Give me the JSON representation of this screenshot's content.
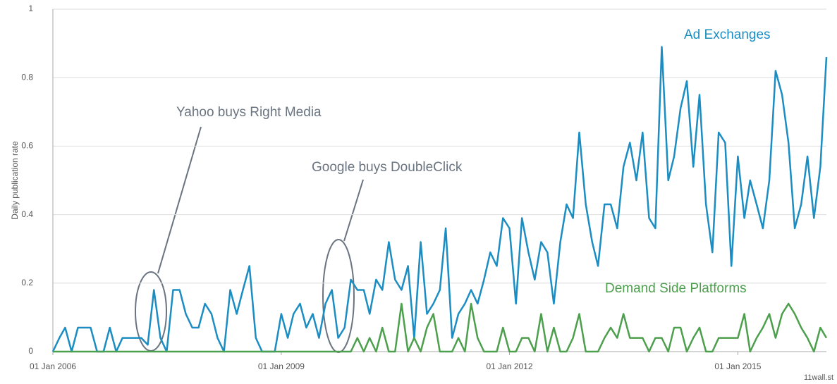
{
  "chart_data": {
    "type": "line",
    "y_label": "Daily publication rate",
    "x": [
      "2006-01-01",
      "2006-02-01",
      "2006-03-01",
      "2006-04-01",
      "2006-05-01",
      "2006-06-01",
      "2006-07-01",
      "2006-08-01",
      "2006-09-01",
      "2006-10-01",
      "2006-11-01",
      "2006-12-01",
      "2007-01-01",
      "2007-02-01",
      "2007-03-01",
      "2007-04-01",
      "2007-05-01",
      "2007-06-01",
      "2007-07-01",
      "2007-08-01",
      "2007-09-01",
      "2007-10-01",
      "2007-11-01",
      "2007-12-01",
      "2008-01-01",
      "2008-02-01",
      "2008-03-01",
      "2008-04-01",
      "2008-05-01",
      "2008-06-01",
      "2008-07-01",
      "2008-08-01",
      "2008-09-01",
      "2008-10-01",
      "2008-11-01",
      "2008-12-01",
      "2009-01-01",
      "2009-02-01",
      "2009-03-01",
      "2009-04-01",
      "2009-05-01",
      "2009-06-01",
      "2009-07-01",
      "2009-08-01",
      "2009-09-01",
      "2009-10-01",
      "2009-11-01",
      "2009-12-01",
      "2010-01-01",
      "2010-02-01",
      "2010-03-01",
      "2010-04-01",
      "2010-05-01",
      "2010-06-01",
      "2010-07-01",
      "2010-08-01",
      "2010-09-01",
      "2010-10-01",
      "2010-11-01",
      "2010-12-01",
      "2011-01-01",
      "2011-02-01",
      "2011-03-01",
      "2011-04-01",
      "2011-05-01",
      "2011-06-01",
      "2011-07-01",
      "2011-08-01",
      "2011-09-01",
      "2011-10-01",
      "2011-11-01",
      "2011-12-01",
      "2012-01-01",
      "2012-02-01",
      "2012-03-01",
      "2012-04-01",
      "2012-05-01",
      "2012-06-01",
      "2012-07-01",
      "2012-08-01",
      "2012-09-01",
      "2012-10-01",
      "2012-11-01",
      "2012-12-01",
      "2013-01-01",
      "2013-02-01",
      "2013-03-01",
      "2013-04-01",
      "2013-05-01",
      "2013-06-01",
      "2013-07-01",
      "2013-08-01",
      "2013-09-01",
      "2013-10-01",
      "2013-11-01",
      "2013-12-01",
      "2014-01-01",
      "2014-02-01",
      "2014-03-01",
      "2014-04-01",
      "2014-05-01",
      "2014-06-01",
      "2014-07-01",
      "2014-08-01",
      "2014-09-01",
      "2014-10-01",
      "2014-11-01",
      "2014-12-01",
      "2015-01-01",
      "2015-02-01",
      "2015-03-01",
      "2015-04-01",
      "2015-05-01",
      "2015-06-01",
      "2015-07-01",
      "2015-08-01",
      "2015-09-01",
      "2015-10-01",
      "2015-11-01",
      "2015-12-01",
      "2016-01-01",
      "2016-02-01",
      "2016-03-01"
    ],
    "series": [
      {
        "name": "Ad Exchanges",
        "color": "#1b8dc2",
        "values": [
          0,
          0.04,
          0.07,
          0,
          0.07,
          0.07,
          0.07,
          0,
          0,
          0.07,
          0,
          0.04,
          0.04,
          0.04,
          0.04,
          0.02,
          0.18,
          0.04,
          0,
          0.18,
          0.18,
          0.11,
          0.07,
          0.07,
          0.14,
          0.11,
          0.04,
          0,
          0.18,
          0.11,
          0.18,
          0.25,
          0.04,
          0,
          0,
          0,
          0.11,
          0.04,
          0.11,
          0.14,
          0.07,
          0.11,
          0.04,
          0.14,
          0.18,
          0.04,
          0.07,
          0.21,
          0.18,
          0.18,
          0.11,
          0.21,
          0.18,
          0.32,
          0.21,
          0.18,
          0.25,
          0.04,
          0.32,
          0.11,
          0.14,
          0.18,
          0.36,
          0.04,
          0.11,
          0.14,
          0.18,
          0.14,
          0.21,
          0.29,
          0.25,
          0.39,
          0.36,
          0.14,
          0.39,
          0.29,
          0.21,
          0.32,
          0.29,
          0.14,
          0.32,
          0.43,
          0.39,
          0.64,
          0.43,
          0.32,
          0.25,
          0.43,
          0.43,
          0.36,
          0.54,
          0.61,
          0.5,
          0.64,
          0.39,
          0.36,
          0.89,
          0.5,
          0.57,
          0.71,
          0.79,
          0.54,
          0.75,
          0.43,
          0.29,
          0.64,
          0.61,
          0.25,
          0.57,
          0.39,
          0.5,
          0.43,
          0.36,
          0.5,
          0.82,
          0.75,
          0.61,
          0.36,
          0.43,
          0.57,
          0.39,
          0.54,
          0.86
        ]
      },
      {
        "name": "Demand Side Platforms",
        "color": "#4c9f4c",
        "values": [
          0,
          0,
          0,
          0,
          0,
          0,
          0,
          0,
          0,
          0,
          0,
          0,
          0,
          0,
          0,
          0,
          0,
          0,
          0,
          0,
          0,
          0,
          0,
          0,
          0,
          0,
          0,
          0,
          0,
          0,
          0,
          0,
          0,
          0,
          0,
          0,
          0,
          0,
          0,
          0,
          0,
          0,
          0,
          0,
          0,
          0,
          0,
          0,
          0.04,
          0,
          0.04,
          0,
          0.07,
          0,
          0,
          0.14,
          0,
          0.04,
          0,
          0.07,
          0.11,
          0,
          0,
          0,
          0.04,
          0,
          0.14,
          0.04,
          0,
          0,
          0,
          0.07,
          0,
          0,
          0.04,
          0.04,
          0,
          0.11,
          0,
          0.07,
          0,
          0,
          0.04,
          0.11,
          0,
          0,
          0,
          0.04,
          0.07,
          0.04,
          0.11,
          0.04,
          0.04,
          0.04,
          0,
          0.04,
          0.04,
          0,
          0.07,
          0.07,
          0,
          0.04,
          0.07,
          0,
          0,
          0.04,
          0.04,
          0.04,
          0.04,
          0.11,
          0,
          0.04,
          0.07,
          0.11,
          0.04,
          0.11,
          0.14,
          0.11,
          0.07,
          0.04,
          0,
          0.07,
          0.04
        ]
      }
    ],
    "xlim": [
      "2006-01-01",
      "2016-03-01"
    ],
    "xticks": [
      {
        "value": "2006-01-01",
        "label": "01 Jan 2006"
      },
      {
        "value": "2009-01-01",
        "label": "01 Jan 2009"
      },
      {
        "value": "2012-01-01",
        "label": "01 Jan 2012"
      },
      {
        "value": "2015-01-01",
        "label": "01 Jan 2015"
      }
    ],
    "ylim": [
      0,
      1
    ],
    "yticks": [
      0,
      0.2,
      0.4,
      0.6,
      0.8,
      1
    ],
    "grid": true,
    "annotations": [
      "Yahoo buys Right Media",
      "Google buys DoubleClick"
    ],
    "source": "11wall.st"
  }
}
